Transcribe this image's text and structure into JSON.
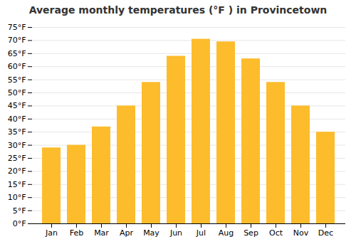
{
  "chart_data": {
    "type": "bar",
    "title": "Average monthly temperatures (°F ) in Provincetown",
    "categories": [
      "Jan",
      "Feb",
      "Mar",
      "Apr",
      "May",
      "Jun",
      "Jul",
      "Aug",
      "Sep",
      "Oct",
      "Nov",
      "Dec"
    ],
    "values": [
      29.0,
      30.0,
      37.0,
      45.0,
      54.0,
      64.0,
      70.5,
      69.5,
      63.0,
      54.0,
      45.0,
      35.0
    ],
    "color": "#FDBC2C",
    "ylim": [
      0,
      75
    ],
    "yticks": [
      {
        "value": 0,
        "label": "0°F"
      },
      {
        "value": 5,
        "label": "5°F"
      },
      {
        "value": 10,
        "label": "10°F"
      },
      {
        "value": 15,
        "label": "15°F"
      },
      {
        "value": 20,
        "label": "20°F"
      },
      {
        "value": 25,
        "label": "25°F"
      },
      {
        "value": 30,
        "label": "30°F"
      },
      {
        "value": 35,
        "label": "35°F"
      },
      {
        "value": 40,
        "label": "40°F"
      },
      {
        "value": 45,
        "label": "45°F"
      },
      {
        "value": 50,
        "label": "50°F"
      },
      {
        "value": 55,
        "label": "55°F"
      },
      {
        "value": 60,
        "label": "60°F"
      },
      {
        "value": 65,
        "label": "65°F"
      },
      {
        "value": 70,
        "label": "70°F"
      },
      {
        "value": 75,
        "label": "75°F"
      }
    ],
    "grid": true
  }
}
